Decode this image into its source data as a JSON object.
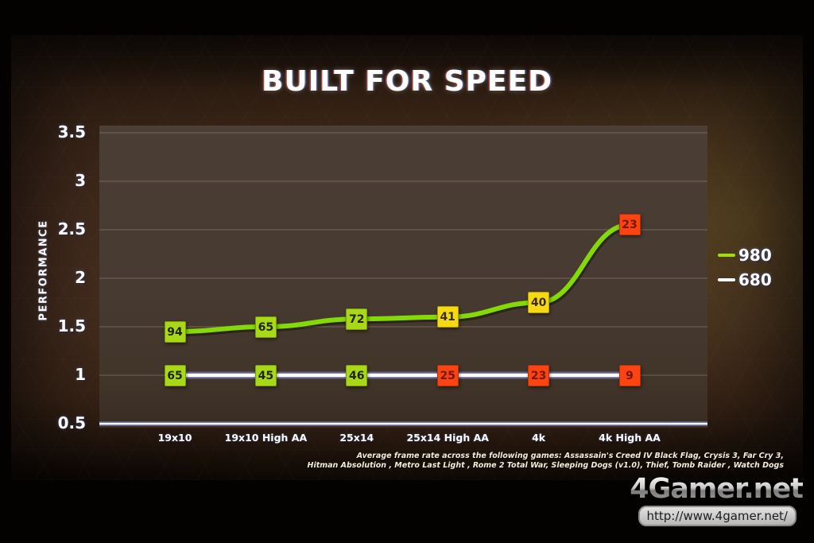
{
  "slide": {
    "title": "BUILT FOR SPEED",
    "footnote_line1": "Average frame rate across the following games: Assassain's Creed IV Black Flag, Crysis 3, Far Cry 3,",
    "footnote_line2": "Hitman Absolution , Metro Last Light , Rome 2 Total War, Sleeping Dogs (v1.0), Thief, Tomb Raider , Watch Dogs"
  },
  "chart_data": {
    "type": "line",
    "title": "BUILT FOR SPEED",
    "xlabel": "",
    "ylabel": "PERFORMANCE",
    "ylim": [
      0.5,
      3.5
    ],
    "yticks": [
      0.5,
      1,
      1.5,
      2,
      2.5,
      3,
      3.5
    ],
    "grid": true,
    "legend_position": "right-outside",
    "categories": [
      "19x10",
      "19x10 High AA",
      "25x14",
      "25x14 High AA",
      "4k",
      "4k High AA"
    ],
    "series": [
      {
        "name": "980",
        "color": "#84d908",
        "values": [
          1.45,
          1.5,
          1.58,
          1.6,
          1.75,
          2.55
        ],
        "point_labels": [
          "94",
          "65",
          "72",
          "41",
          "40",
          "23"
        ],
        "point_label_colors": [
          "#a9d916",
          "#a9d916",
          "#a9d916",
          "#f7d911",
          "#f7d911",
          "#fb4411"
        ],
        "point_label_text_colors": [
          "#20240a",
          "#20240a",
          "#20240a",
          "#3a2c05",
          "#3a2c05",
          "#731700"
        ]
      },
      {
        "name": "680",
        "color": "#ffffff",
        "values": [
          1.0,
          1.0,
          1.0,
          1.0,
          1.0,
          1.0
        ],
        "point_labels": [
          "65",
          "45",
          "46",
          "25",
          "23",
          "9"
        ],
        "point_label_colors": [
          "#a9d916",
          "#a9d916",
          "#a9d916",
          "#fb4411",
          "#fb4411",
          "#fb4411"
        ],
        "point_label_text_colors": [
          "#20240a",
          "#20240a",
          "#20240a",
          "#731700",
          "#731700",
          "#731700"
        ]
      }
    ]
  },
  "legend": {
    "items": [
      {
        "label": "980",
        "color": "#9fe000"
      },
      {
        "label": "680",
        "color": "#ffffff"
      }
    ]
  },
  "watermark": {
    "brand": "4Gamer.net",
    "url": "http://www.4gamer.net/"
  },
  "colors": {
    "photo_background": "#040201",
    "slide_brown": "#34231a",
    "panel": "#473a31",
    "gridline": "rgba(215,195,175,0.32)",
    "axis_line": "#f4f6ff",
    "title_text": "#ffffff",
    "box_green": "#a9d916",
    "box_yellow": "#f7d911",
    "box_orange": "#fb4411"
  }
}
